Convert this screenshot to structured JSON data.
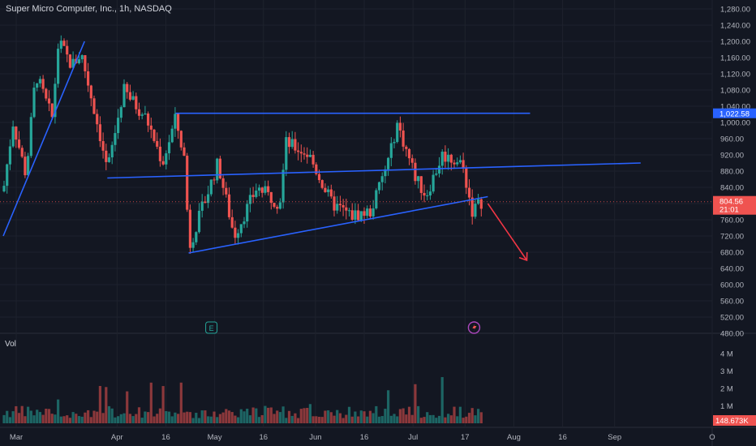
{
  "header": {
    "title": "Super Micro Computer, Inc., 1h, NASDAQ"
  },
  "volume": {
    "label": "Vol",
    "last_value": "148.673K"
  },
  "price_axis": {
    "ticks": [
      "1,280.00",
      "1,240.00",
      "1,200.00",
      "1,160.00",
      "1,120.00",
      "1,080.00",
      "1,040.00",
      "1,000.00",
      "960.00",
      "920.00",
      "880.00",
      "840.00",
      "800.00",
      "760.00",
      "720.00",
      "680.00",
      "640.00",
      "600.00",
      "560.00",
      "520.00",
      "480.00"
    ],
    "line_label": "1,022.58",
    "last_price": "804.56",
    "countdown": "21:01"
  },
  "volume_axis": {
    "ticks": [
      "4 M",
      "3 M",
      "2 M",
      "1 M"
    ]
  },
  "time_axis": {
    "ticks": [
      "Mar",
      "Apr",
      "16",
      "May",
      "16",
      "Jun",
      "16",
      "Jul",
      "17",
      "Aug",
      "16",
      "Sep",
      "O"
    ]
  },
  "colors": {
    "background": "#131722",
    "up": "#26a69a",
    "down": "#ef5350",
    "trendline": "#2962ff",
    "arrow": "#f23645",
    "grid": "#1e222d",
    "axis_text": "#b2b5be"
  },
  "icons": {
    "earnings_marker": "E",
    "event_marker": "lightning-icon"
  },
  "chart_data": {
    "type": "candlestick",
    "title": "Super Micro Computer, Inc., 1h, NASDAQ",
    "ylim": [
      470,
      1290
    ],
    "volume_ylim": [
      0,
      4000000
    ],
    "last_price": 804.56,
    "last_volume": 148673,
    "horizontal_line": 1022.58,
    "grid": true,
    "price_path_anchors": [
      {
        "date": "2024-02-26",
        "price": 830
      },
      {
        "date": "2024-02-29",
        "price": 1000
      },
      {
        "date": "2024-03-04",
        "price": 870
      },
      {
        "date": "2024-03-07",
        "price": 1120
      },
      {
        "date": "2024-03-12",
        "price": 1010
      },
      {
        "date": "2024-03-14",
        "price": 1200
      },
      {
        "date": "2024-03-18",
        "price": 1140
      },
      {
        "date": "2024-03-21",
        "price": 1170
      },
      {
        "date": "2024-03-27",
        "price": 960
      },
      {
        "date": "2024-03-29",
        "price": 880
      },
      {
        "date": "2024-04-03",
        "price": 1080
      },
      {
        "date": "2024-04-10",
        "price": 1010
      },
      {
        "date": "2024-04-15",
        "price": 900
      },
      {
        "date": "2024-04-19",
        "price": 1010
      },
      {
        "date": "2024-04-22",
        "price": 900
      },
      {
        "date": "2024-04-23",
        "price": 690
      },
      {
        "date": "2024-04-26",
        "price": 760
      },
      {
        "date": "2024-05-02",
        "price": 900
      },
      {
        "date": "2024-05-07",
        "price": 720
      },
      {
        "date": "2024-05-14",
        "price": 840
      },
      {
        "date": "2024-05-21",
        "price": 800
      },
      {
        "date": "2024-05-23",
        "price": 950
      },
      {
        "date": "2024-05-30",
        "price": 920
      },
      {
        "date": "2024-06-06",
        "price": 800
      },
      {
        "date": "2024-06-12",
        "price": 770
      },
      {
        "date": "2024-06-18",
        "price": 780
      },
      {
        "date": "2024-06-24",
        "price": 920
      },
      {
        "date": "2024-06-26",
        "price": 1000
      },
      {
        "date": "2024-07-02",
        "price": 860
      },
      {
        "date": "2024-07-05",
        "price": 820
      },
      {
        "date": "2024-07-10",
        "price": 920
      },
      {
        "date": "2024-07-16",
        "price": 900
      },
      {
        "date": "2024-07-18",
        "price": 830
      },
      {
        "date": "2024-07-19",
        "price": 780
      },
      {
        "date": "2024-07-22",
        "price": 804.56
      }
    ],
    "trendlines": [
      {
        "from": {
          "date": "2024-02-26",
          "price": 720
        },
        "to": {
          "date": "2024-03-22",
          "price": 1200
        }
      },
      {
        "from": {
          "date": "2024-03-29",
          "price": 863
        },
        "to": {
          "date": "2024-09-09",
          "price": 900
        }
      },
      {
        "from": {
          "date": "2024-04-23",
          "price": 678
        },
        "to": {
          "date": "2024-07-24",
          "price": 817
        }
      },
      {
        "from": {
          "date": "2024-04-19",
          "price": 1022.58
        },
        "to": {
          "date": "2024-08-06",
          "price": 1022.58
        }
      }
    ],
    "arrow": {
      "from": {
        "date": "2024-07-24",
        "price": 800
      },
      "to": {
        "date": "2024-08-05",
        "price": 660
      }
    },
    "markers": [
      {
        "type": "earnings",
        "date": "2024-04-30"
      },
      {
        "type": "event",
        "date": "2024-07-31"
      }
    ]
  }
}
